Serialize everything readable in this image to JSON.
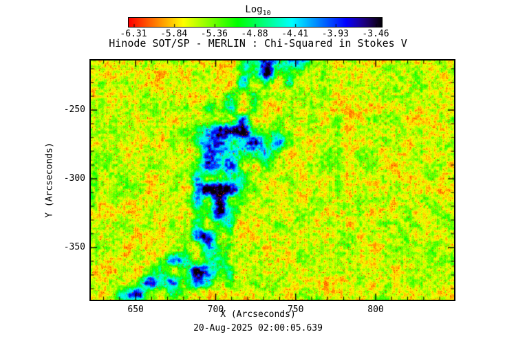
{
  "figure": {
    "title": "Hinode SOT/SP - MERLIN : Chi-Squared in Stokes V",
    "xlabel": "X (Arcseconds)",
    "ylabel": "Y (Arcseconds)",
    "timestamp": "20-Aug-2025 02:00:05.639"
  },
  "colorbar": {
    "title": "Log",
    "title_sub": "10",
    "tick_labels": [
      "-6.31",
      "-5.84",
      "-5.36",
      "-4.88",
      "-4.41",
      "-3.93",
      "-3.46"
    ]
  },
  "chart_data": {
    "type": "heatmap",
    "title": "Hinode SOT/SP - MERLIN : Chi-Squared in Stokes V",
    "xlabel": "X (Arcseconds)",
    "ylabel": "Y (Arcseconds)",
    "xlim": [
      622,
      849
    ],
    "ylim": [
      -388,
      -214
    ],
    "x_ticks": [
      650,
      700,
      750,
      800
    ],
    "y_ticks": [
      -250,
      -300,
      -350
    ],
    "grid": false,
    "legend_position": "none",
    "colorbar": {
      "label": "Log10",
      "orientation": "horizontal",
      "position": "top",
      "ticks": [
        -6.31,
        -5.84,
        -5.36,
        -4.88,
        -4.41,
        -3.93,
        -3.46
      ],
      "range": [
        -6.31,
        -3.46
      ],
      "colormap_stops": [
        "#ff0000",
        "#ff8000",
        "#ffff00",
        "#80ff00",
        "#00ff80",
        "#00ffff",
        "#0080ff",
        "#0000ff",
        "#000000"
      ]
    },
    "pattern_description": "Granular solar chi-squared map: background dominated by log10 values near -5.3 (yellow-green) with dense fine-scale red/orange speckle near -6, and coherent patches of higher values near -4.4 (green/cyan) with small blue/dark cores near -3.6, concentrated along a diagonal band from top-center toward lower-left."
  }
}
